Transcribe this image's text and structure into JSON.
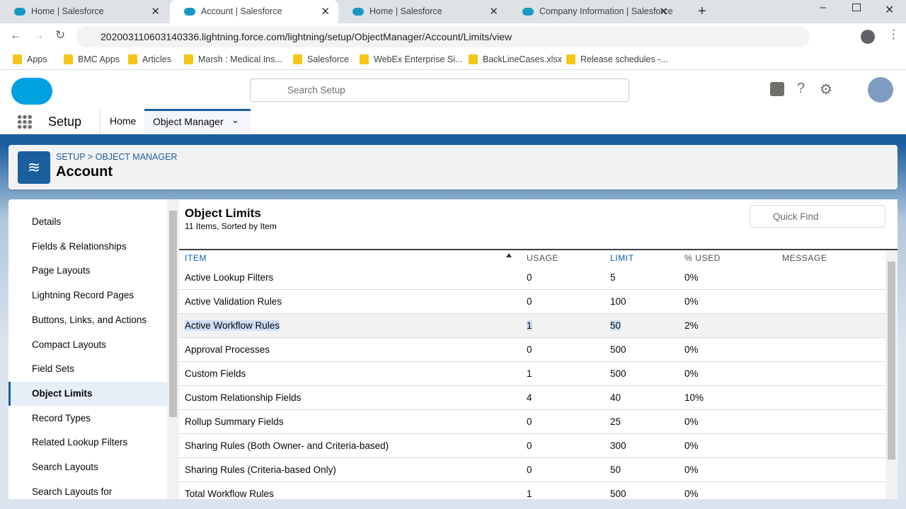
{
  "browser": {
    "tabs": [
      "Home | Salesforce",
      "Account | Salesforce",
      "Home | Salesforce",
      "Company Information | Salesforce"
    ],
    "url": "202003110603140336.lightning.force.com/lightning/setup/ObjectManager/Account/Limits/view",
    "bookmarks": [
      "Apps",
      "BMC Apps",
      "Articles",
      "Marsh : Medical Ins...",
      "Salesforce",
      "WebEx Enterprise Si...",
      "BackLineCases.xlsx",
      "Release schedules -..."
    ]
  },
  "header": {
    "search_placeholder": "Search Setup"
  },
  "nav": {
    "app": "Setup",
    "tabs": [
      "Home",
      "Object Manager"
    ]
  },
  "page": {
    "breadcrumb": "SETUP > OBJECT MANAGER",
    "title": "Account"
  },
  "sidebar": {
    "items": [
      "Details",
      "Fields & Relationships",
      "Page Layouts",
      "Lightning Record Pages",
      "Buttons, Links, and Actions",
      "Compact Layouts",
      "Field Sets",
      "Object Limits",
      "Record Types",
      "Related Lookup Filters",
      "Search Layouts",
      "Search Layouts for"
    ],
    "selected": "Object Limits"
  },
  "content": {
    "title": "Object Limits",
    "subtitle": "11 Items, Sorted by Item",
    "quick_find": "Quick Find"
  },
  "table": {
    "columns": [
      "ITEM",
      "USAGE",
      "LIMIT",
      "% USED",
      "MESSAGE"
    ],
    "rows": [
      [
        "Active Lookup Filters",
        "0",
        "5",
        "0%"
      ],
      [
        "Active Validation Rules",
        "0",
        "100",
        "0%"
      ],
      [
        "Active Workflow Rules",
        "1",
        "50",
        "2%"
      ],
      [
        "Approval Processes",
        "0",
        "500",
        "0%"
      ],
      [
        "Custom Fields",
        "1",
        "500",
        "0%"
      ],
      [
        "Custom Relationship Fields",
        "4",
        "40",
        "10%"
      ],
      [
        "Rollup Summary Fields",
        "0",
        "25",
        "0%"
      ],
      [
        "Sharing Rules (Both Owner- and Criteria-based)",
        "0",
        "300",
        "0%"
      ],
      [
        "Sharing Rules (Criteria-based Only)",
        "0",
        "50",
        "0%"
      ],
      [
        "Total Workflow Rules",
        "1",
        "500",
        "0%"
      ]
    ]
  }
}
